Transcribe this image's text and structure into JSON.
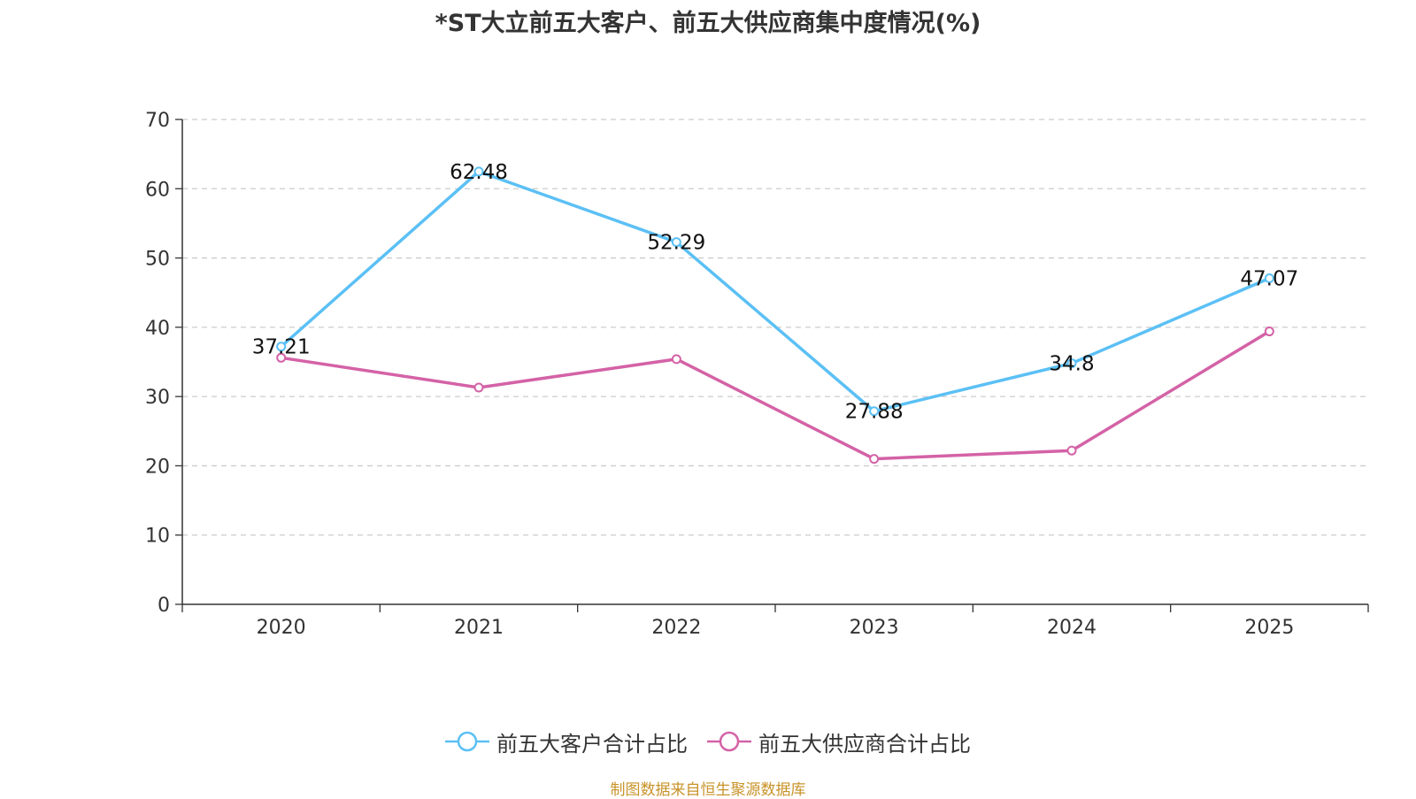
{
  "chart_data": {
    "type": "line",
    "title": "*ST大立前五大客户、前五大供应商集中度情况(%)",
    "categories": [
      "2020",
      "2021",
      "2022",
      "2023",
      "2024",
      "2025"
    ],
    "series": [
      {
        "name": "前五大客户合计占比",
        "color": "#5bc0f5",
        "values": [
          37.21,
          62.48,
          52.29,
          27.88,
          34.8,
          47.07
        ],
        "labels": [
          "37.21",
          "62.48",
          "52.29",
          "27.88",
          "34.8",
          "47.07"
        ]
      },
      {
        "name": "前五大供应商合计占比",
        "color": "#d462a6",
        "values": [
          35.6,
          31.3,
          35.4,
          21.0,
          22.2,
          39.4
        ]
      }
    ],
    "y_ticks": [
      "0",
      "10",
      "20",
      "30",
      "40",
      "50",
      "60",
      "70"
    ],
    "ylim": [
      0,
      70
    ],
    "xlabel": "",
    "ylabel": "",
    "grid": true,
    "legend_position": "bottom"
  },
  "footer": {
    "source": "制图数据来自恒生聚源数据库"
  }
}
